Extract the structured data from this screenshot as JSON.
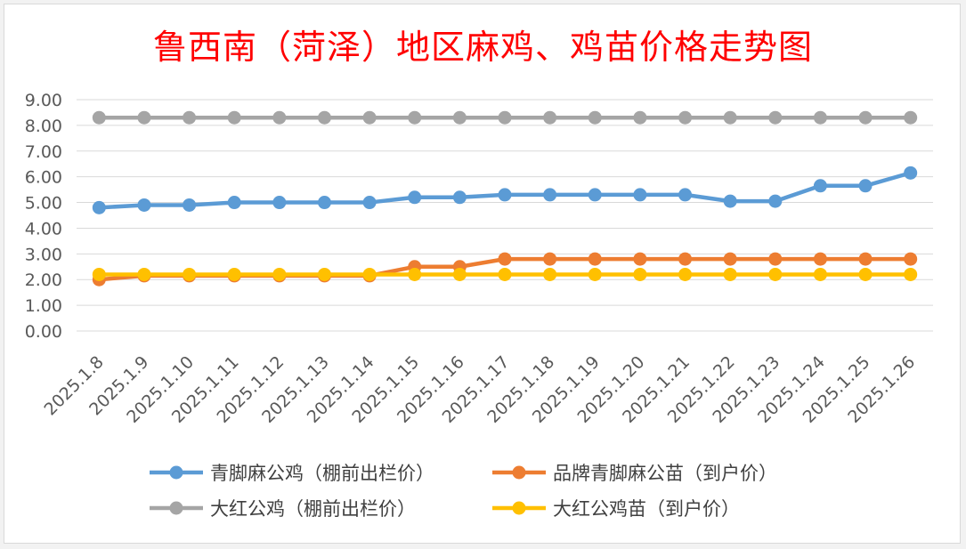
{
  "chart_data": {
    "type": "line",
    "title": "鲁西南（菏泽）地区麻鸡、鸡苗价格走势图",
    "xlabel": "",
    "ylabel": "",
    "ylim": [
      0,
      9
    ],
    "yticks": [
      "0.00",
      "1.00",
      "2.00",
      "3.00",
      "4.00",
      "5.00",
      "6.00",
      "7.00",
      "8.00",
      "9.00"
    ],
    "grid": true,
    "legend_position": "bottom",
    "categories": [
      "2025.1.8",
      "2025.1.9",
      "2025.1.10",
      "2025.1.11",
      "2025.1.12",
      "2025.1.13",
      "2025.1.14",
      "2025.1.15",
      "2025.1.16",
      "2025.1.17",
      "2025.1.18",
      "2025.1.19",
      "2025.1.20",
      "2025.1.21",
      "2025.1.22",
      "2025.1.23",
      "2025.1.24",
      "2025.1.25",
      "2025.1.26"
    ],
    "series": [
      {
        "name": "青脚麻公鸡（棚前出栏价）",
        "color": "#5b9bd5",
        "values": [
          4.8,
          4.9,
          4.9,
          5.0,
          5.0,
          5.0,
          5.0,
          5.2,
          5.2,
          5.3,
          5.3,
          5.3,
          5.3,
          5.3,
          5.05,
          5.05,
          5.65,
          5.65,
          6.15
        ]
      },
      {
        "name": "品牌青脚麻公苗（到户价）",
        "color": "#ed7d31",
        "values": [
          2.0,
          2.15,
          2.15,
          2.15,
          2.15,
          2.15,
          2.15,
          2.5,
          2.5,
          2.8,
          2.8,
          2.8,
          2.8,
          2.8,
          2.8,
          2.8,
          2.8,
          2.8,
          2.8
        ]
      },
      {
        "name": "大红公鸡（棚前出栏价）",
        "color": "#a5a5a5",
        "values": [
          8.3,
          8.3,
          8.3,
          8.3,
          8.3,
          8.3,
          8.3,
          8.3,
          8.3,
          8.3,
          8.3,
          8.3,
          8.3,
          8.3,
          8.3,
          8.3,
          8.3,
          8.3,
          8.3
        ]
      },
      {
        "name": "大红公鸡苗（到户价）",
        "color": "#ffc000",
        "values": [
          2.2,
          2.2,
          2.2,
          2.2,
          2.2,
          2.2,
          2.2,
          2.2,
          2.2,
          2.2,
          2.2,
          2.2,
          2.2,
          2.2,
          2.2,
          2.2,
          2.2,
          2.2,
          2.2
        ]
      }
    ]
  }
}
